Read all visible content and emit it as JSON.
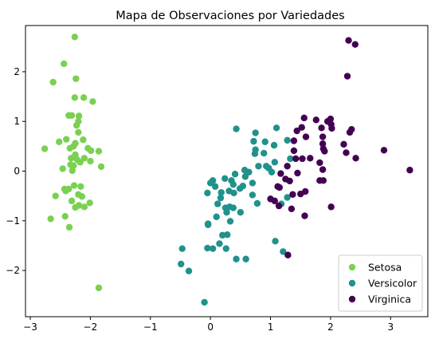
{
  "chart_data": {
    "type": "scatter",
    "title": "Mapa de Observaciones por Variedades",
    "xlabel": "",
    "ylabel": "",
    "xlim": [
      -3.08,
      3.62
    ],
    "ylim": [
      -2.93,
      2.93
    ],
    "xticks": [
      -3,
      -2,
      -1,
      0,
      1,
      2,
      3
    ],
    "yticks": [
      -2,
      -1,
      0,
      1,
      2
    ],
    "xtick_labels": [
      "−3",
      "−2",
      "−1",
      "0",
      "1",
      "2",
      "3"
    ],
    "ytick_labels": [
      "−2",
      "−1",
      "0",
      "1",
      "2"
    ],
    "grid": false,
    "legend_position": "lower-right",
    "series": [
      {
        "name": "Setosa",
        "color": "#7ad151",
        "points": [
          [
            -2.26,
            2.7
          ],
          [
            -2.44,
            2.16
          ],
          [
            -2.62,
            1.79
          ],
          [
            -2.24,
            1.86
          ],
          [
            -2.26,
            1.48
          ],
          [
            -2.11,
            1.48
          ],
          [
            -1.96,
            1.4
          ],
          [
            -2.31,
            1.12
          ],
          [
            -2.36,
            1.12
          ],
          [
            -2.19,
            1.11
          ],
          [
            -2.2,
            1.0
          ],
          [
            -2.23,
            0.92
          ],
          [
            -2.4,
            0.64
          ],
          [
            -2.2,
            0.78
          ],
          [
            -2.12,
            0.63
          ],
          [
            -2.52,
            0.59
          ],
          [
            -2.34,
            0.46
          ],
          [
            -2.28,
            0.5
          ],
          [
            -2.25,
            0.56
          ],
          [
            -2.76,
            0.45
          ],
          [
            -2.04,
            0.46
          ],
          [
            -1.99,
            0.41
          ],
          [
            -1.86,
            0.4
          ],
          [
            -2.25,
            0.33
          ],
          [
            -2.32,
            0.26
          ],
          [
            -2.22,
            0.23
          ],
          [
            -2.1,
            0.26
          ],
          [
            -2.17,
            0.18
          ],
          [
            -2.33,
            0.13
          ],
          [
            -2.28,
            0.11
          ],
          [
            -2.0,
            0.2
          ],
          [
            -2.46,
            0.05
          ],
          [
            -2.3,
            0.01
          ],
          [
            -1.82,
            0.09
          ],
          [
            -2.43,
            -0.36
          ],
          [
            -2.36,
            -0.36
          ],
          [
            -2.27,
            -0.29
          ],
          [
            -2.16,
            -0.31
          ],
          [
            -2.41,
            -0.4
          ],
          [
            -2.2,
            -0.47
          ],
          [
            -2.58,
            -0.5
          ],
          [
            -2.14,
            -0.51
          ],
          [
            -2.31,
            -0.6
          ],
          [
            -2.01,
            -0.64
          ],
          [
            -2.19,
            -0.69
          ],
          [
            -2.1,
            -0.72
          ],
          [
            -2.25,
            -0.73
          ],
          [
            -2.42,
            -0.91
          ],
          [
            -2.66,
            -0.96
          ],
          [
            -2.35,
            -1.13
          ],
          [
            -1.86,
            -2.35
          ]
        ]
      },
      {
        "name": "Versicolor",
        "color": "#21918c",
        "points": [
          [
            0.43,
            0.85
          ],
          [
            0.75,
            0.77
          ],
          [
            1.1,
            0.87
          ],
          [
            0.72,
            0.6
          ],
          [
            0.91,
            0.59
          ],
          [
            1.28,
            0.62
          ],
          [
            0.75,
            0.43
          ],
          [
            1.06,
            0.52
          ],
          [
            0.74,
            0.35
          ],
          [
            0.89,
            0.36
          ],
          [
            1.33,
            0.25
          ],
          [
            1.07,
            0.18
          ],
          [
            0.93,
            0.1
          ],
          [
            0.97,
            0.06
          ],
          [
            0.8,
            0.1
          ],
          [
            0.57,
            0.02
          ],
          [
            0.41,
            -0.06
          ],
          [
            0.64,
            -0.02
          ],
          [
            0.58,
            -0.11
          ],
          [
            1.02,
            -0.02
          ],
          [
            0.24,
            -0.15
          ],
          [
            0.04,
            -0.19
          ],
          [
            0.02,
            -0.22
          ],
          [
            0.0,
            -0.24
          ],
          [
            0.08,
            -0.31
          ],
          [
            0.35,
            -0.19
          ],
          [
            0.38,
            -0.27
          ],
          [
            0.54,
            -0.3
          ],
          [
            0.7,
            -0.24
          ],
          [
            0.49,
            -0.35
          ],
          [
            0.31,
            -0.4
          ],
          [
            0.39,
            -0.44
          ],
          [
            0.18,
            -0.43
          ],
          [
            -0.05,
            -0.44
          ],
          [
            0.17,
            -0.54
          ],
          [
            0.12,
            -0.66
          ],
          [
            0.25,
            -0.74
          ],
          [
            0.32,
            -0.72
          ],
          [
            0.38,
            -0.74
          ],
          [
            0.27,
            -0.83
          ],
          [
            0.1,
            -0.92
          ],
          [
            -0.04,
            -1.06
          ],
          [
            -0.04,
            -1.08
          ],
          [
            0.33,
            -1.01
          ],
          [
            0.5,
            -0.83
          ],
          [
            0.7,
            -0.48
          ],
          [
            1.18,
            -0.66
          ],
          [
            1.28,
            -0.53
          ],
          [
            0.78,
            -0.65
          ],
          [
            0.2,
            -1.29
          ],
          [
            0.28,
            -1.28
          ],
          [
            0.15,
            -1.46
          ],
          [
            -0.05,
            -1.55
          ],
          [
            0.04,
            -1.56
          ],
          [
            0.26,
            -1.56
          ],
          [
            0.43,
            -1.77
          ],
          [
            0.59,
            -1.77
          ],
          [
            1.08,
            -1.41
          ],
          [
            1.21,
            -1.62
          ],
          [
            -0.47,
            -1.56
          ],
          [
            -0.49,
            -1.87
          ],
          [
            -0.36,
            -2.01
          ],
          [
            -0.1,
            -2.64
          ]
        ]
      },
      {
        "name": "Virginica",
        "color": "#440154",
        "points": [
          [
            2.3,
            2.63
          ],
          [
            2.41,
            2.55
          ],
          [
            2.28,
            1.91
          ],
          [
            1.56,
            1.07
          ],
          [
            1.76,
            1.03
          ],
          [
            1.95,
            1.0
          ],
          [
            2.0,
            1.05
          ],
          [
            2.01,
            0.94
          ],
          [
            1.85,
            0.87
          ],
          [
            2.02,
            0.86
          ],
          [
            1.52,
            0.88
          ],
          [
            1.44,
            0.81
          ],
          [
            1.59,
            0.69
          ],
          [
            1.87,
            0.69
          ],
          [
            2.32,
            0.78
          ],
          [
            2.35,
            0.84
          ],
          [
            1.39,
            0.61
          ],
          [
            1.87,
            0.55
          ],
          [
            1.88,
            0.45
          ],
          [
            1.9,
            0.4
          ],
          [
            2.22,
            0.54
          ],
          [
            2.26,
            0.37
          ],
          [
            1.39,
            0.41
          ],
          [
            1.42,
            0.25
          ],
          [
            1.53,
            0.25
          ],
          [
            1.66,
            0.26
          ],
          [
            2.42,
            0.26
          ],
          [
            2.89,
            0.42
          ],
          [
            1.82,
            0.17
          ],
          [
            1.28,
            0.1
          ],
          [
            1.87,
            0.03
          ],
          [
            1.45,
            -0.04
          ],
          [
            1.17,
            -0.05
          ],
          [
            1.25,
            -0.16
          ],
          [
            1.32,
            -0.2
          ],
          [
            1.88,
            -0.19
          ],
          [
            1.82,
            -0.19
          ],
          [
            1.12,
            -0.31
          ],
          [
            1.15,
            -0.33
          ],
          [
            1.58,
            -0.41
          ],
          [
            1.5,
            -0.46
          ],
          [
            1.37,
            -0.47
          ],
          [
            1.0,
            -0.56
          ],
          [
            1.07,
            -0.6
          ],
          [
            1.14,
            -0.7
          ],
          [
            1.35,
            -0.76
          ],
          [
            1.57,
            -0.9
          ],
          [
            2.01,
            -0.72
          ],
          [
            1.29,
            -1.69
          ],
          [
            3.32,
            0.02
          ]
        ]
      }
    ]
  }
}
